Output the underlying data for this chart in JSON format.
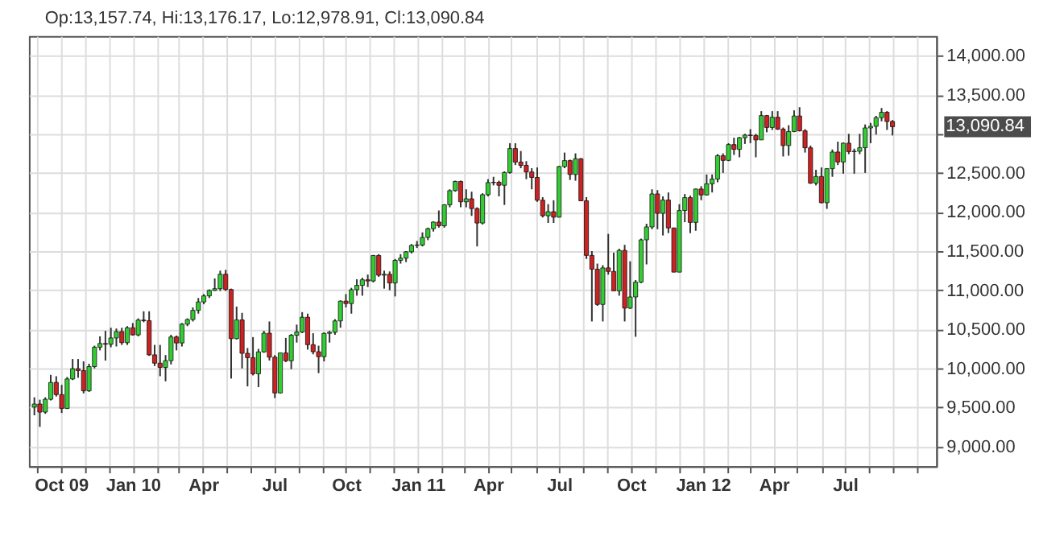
{
  "chart_data": {
    "type": "candlestick",
    "title": "Op:13,157.74, Hi:13,176.17, Lo:12,978.91, Cl:13,090.84",
    "x": [
      "2009-08-28",
      "2009-09-04",
      "2009-09-11",
      "2009-09-18",
      "2009-09-25",
      "2009-10-02",
      "2009-10-09",
      "2009-10-16",
      "2009-10-23",
      "2009-10-30",
      "2009-11-06",
      "2009-11-13",
      "2009-11-20",
      "2009-11-27",
      "2009-12-04",
      "2009-12-11",
      "2009-12-18",
      "2009-12-25",
      "2010-01-01",
      "2010-01-08",
      "2010-01-15",
      "2010-01-22",
      "2010-01-29",
      "2010-02-05",
      "2010-02-12",
      "2010-02-19",
      "2010-02-26",
      "2010-03-05",
      "2010-03-12",
      "2010-03-19",
      "2010-03-26",
      "2010-04-02",
      "2010-04-09",
      "2010-04-16",
      "2010-04-23",
      "2010-04-30",
      "2010-05-07",
      "2010-05-14",
      "2010-05-21",
      "2010-05-28",
      "2010-06-04",
      "2010-06-11",
      "2010-06-18",
      "2010-06-25",
      "2010-07-02",
      "2010-07-09",
      "2010-07-16",
      "2010-07-23",
      "2010-07-30",
      "2010-08-06",
      "2010-08-13",
      "2010-08-20",
      "2010-08-27",
      "2010-09-03",
      "2010-09-10",
      "2010-09-17",
      "2010-09-24",
      "2010-10-01",
      "2010-10-08",
      "2010-10-15",
      "2010-10-22",
      "2010-10-29",
      "2010-11-05",
      "2010-11-12",
      "2010-11-19",
      "2010-11-26",
      "2010-12-03",
      "2010-12-10",
      "2010-12-17",
      "2010-12-24",
      "2010-12-31",
      "2011-01-07",
      "2011-01-14",
      "2011-01-21",
      "2011-01-28",
      "2011-02-04",
      "2011-02-11",
      "2011-02-18",
      "2011-02-25",
      "2011-03-04",
      "2011-03-11",
      "2011-03-18",
      "2011-03-25",
      "2011-04-01",
      "2011-04-08",
      "2011-04-15",
      "2011-04-22",
      "2011-04-29",
      "2011-05-06",
      "2011-05-13",
      "2011-05-20",
      "2011-05-27",
      "2011-06-03",
      "2011-06-10",
      "2011-06-17",
      "2011-06-24",
      "2011-07-01",
      "2011-07-08",
      "2011-07-15",
      "2011-07-22",
      "2011-07-29",
      "2011-08-05",
      "2011-08-12",
      "2011-08-19",
      "2011-08-26",
      "2011-09-02",
      "2011-09-09",
      "2011-09-16",
      "2011-09-23",
      "2011-09-30",
      "2011-10-07",
      "2011-10-14",
      "2011-10-21",
      "2011-10-28",
      "2011-11-04",
      "2011-11-11",
      "2011-11-18",
      "2011-11-25",
      "2011-12-02",
      "2011-12-09",
      "2011-12-16",
      "2011-12-23",
      "2011-12-30",
      "2012-01-06",
      "2012-01-13",
      "2012-01-20",
      "2012-01-27",
      "2012-02-03",
      "2012-02-10",
      "2012-02-17",
      "2012-02-24",
      "2012-03-02",
      "2012-03-09",
      "2012-03-16",
      "2012-03-23",
      "2012-03-30",
      "2012-04-06",
      "2012-04-13",
      "2012-04-20",
      "2012-04-27",
      "2012-05-04",
      "2012-05-11",
      "2012-05-18",
      "2012-05-25",
      "2012-06-01",
      "2012-06-08",
      "2012-06-15",
      "2012-06-22",
      "2012-06-29",
      "2012-07-06",
      "2012-07-13",
      "2012-07-20",
      "2012-07-27",
      "2012-08-03",
      "2012-08-10",
      "2012-08-17",
      "2012-08-24",
      "2012-08-31"
    ],
    "ohlc": [
      [
        9505,
        9630,
        9400,
        9544
      ],
      [
        9544,
        9600,
        9252,
        9441
      ],
      [
        9441,
        9630,
        9420,
        9605
      ],
      [
        9605,
        9917,
        9590,
        9820
      ],
      [
        9820,
        9900,
        9640,
        9665
      ],
      [
        9665,
        9790,
        9430,
        9488
      ],
      [
        9488,
        9890,
        9480,
        9865
      ],
      [
        9865,
        10120,
        9850,
        9996
      ],
      [
        9996,
        10120,
        9880,
        9972
      ],
      [
        9972,
        10090,
        9680,
        9713
      ],
      [
        9713,
        10060,
        9700,
        10023
      ],
      [
        10023,
        10290,
        10000,
        10271
      ],
      [
        10271,
        10410,
        10230,
        10318
      ],
      [
        10318,
        10480,
        10100,
        10309
      ],
      [
        10309,
        10520,
        10270,
        10389
      ],
      [
        10389,
        10510,
        10280,
        10471
      ],
      [
        10471,
        10520,
        10300,
        10329
      ],
      [
        10329,
        10540,
        10300,
        10520
      ],
      [
        10520,
        10580,
        10420,
        10428
      ],
      [
        10428,
        10640,
        10410,
        10618
      ],
      [
        10618,
        10730,
        10590,
        10610
      ],
      [
        10610,
        10730,
        10160,
        10173
      ],
      [
        10173,
        10300,
        10030,
        10067
      ],
      [
        10067,
        10300,
        9900,
        10012
      ],
      [
        10012,
        10170,
        9835,
        10099
      ],
      [
        10099,
        10430,
        10050,
        10402
      ],
      [
        10402,
        10420,
        10230,
        10325
      ],
      [
        10325,
        10580,
        10280,
        10566
      ],
      [
        10566,
        10640,
        10540,
        10625
      ],
      [
        10625,
        10780,
        10600,
        10742
      ],
      [
        10742,
        10900,
        10700,
        10850
      ],
      [
        10850,
        10950,
        10820,
        10927
      ],
      [
        10927,
        11010,
        10900,
        10997
      ],
      [
        10997,
        11150,
        10990,
        11019
      ],
      [
        11019,
        11250,
        10990,
        11204
      ],
      [
        11204,
        11260,
        10990,
        11009
      ],
      [
        11009,
        11020,
        9870,
        10380
      ],
      [
        10380,
        10790,
        10370,
        10620
      ],
      [
        10620,
        10710,
        10000,
        10193
      ],
      [
        10193,
        10260,
        9770,
        10137
      ],
      [
        10137,
        10400,
        9910,
        9931
      ],
      [
        9931,
        10250,
        9760,
        10211
      ],
      [
        10211,
        10480,
        10200,
        10450
      ],
      [
        10450,
        10600,
        10100,
        10143
      ],
      [
        10143,
        10170,
        9620,
        9686
      ],
      [
        9686,
        10200,
        9680,
        10198
      ],
      [
        10198,
        10390,
        10080,
        10097
      ],
      [
        10097,
        10440,
        9990,
        10424
      ],
      [
        10424,
        10560,
        10330,
        10466
      ],
      [
        10466,
        10720,
        10450,
        10654
      ],
      [
        10654,
        10700,
        10240,
        10303
      ],
      [
        10303,
        10450,
        10180,
        10213
      ],
      [
        10213,
        10290,
        9940,
        10150
      ],
      [
        10150,
        10460,
        10090,
        10448
      ],
      [
        10448,
        10480,
        10330,
        10462
      ],
      [
        10462,
        10630,
        10430,
        10607
      ],
      [
        10607,
        10870,
        10520,
        10860
      ],
      [
        10860,
        10950,
        10780,
        10829
      ],
      [
        10829,
        11030,
        10700,
        11006
      ],
      [
        11006,
        11140,
        10930,
        11062
      ],
      [
        11062,
        11160,
        10930,
        11133
      ],
      [
        11133,
        11200,
        11040,
        11118
      ],
      [
        11118,
        11450,
        11100,
        11444
      ],
      [
        11444,
        11460,
        11170,
        11192
      ],
      [
        11192,
        11250,
        11020,
        11204
      ],
      [
        11204,
        11240,
        11000,
        11092
      ],
      [
        11092,
        11400,
        10920,
        11382
      ],
      [
        11382,
        11460,
        11340,
        11410
      ],
      [
        11410,
        11500,
        11360,
        11491
      ],
      [
        11491,
        11590,
        11470,
        11573
      ],
      [
        11573,
        11630,
        11540,
        11578
      ],
      [
        11578,
        11740,
        11560,
        11675
      ],
      [
        11675,
        11800,
        11640,
        11787
      ],
      [
        11787,
        11880,
        11750,
        11871
      ],
      [
        11871,
        12020,
        11800,
        11824
      ],
      [
        11824,
        12100,
        11800,
        12092
      ],
      [
        12092,
        12290,
        12060,
        12273
      ],
      [
        12273,
        12400,
        12260,
        12391
      ],
      [
        12391,
        12400,
        12060,
        12130
      ],
      [
        12130,
        12290,
        12060,
        12169
      ],
      [
        12169,
        12260,
        11950,
        12044
      ],
      [
        12044,
        12060,
        11560,
        11859
      ],
      [
        11859,
        12240,
        11840,
        12221
      ],
      [
        12221,
        12420,
        12200,
        12376
      ],
      [
        12376,
        12450,
        12340,
        12380
      ],
      [
        12380,
        12400,
        12200,
        12342
      ],
      [
        12342,
        12520,
        12090,
        12505
      ],
      [
        12505,
        12880,
        12490,
        12811
      ],
      [
        12811,
        12880,
        12600,
        12639
      ],
      [
        12639,
        12780,
        12560,
        12596
      ],
      [
        12596,
        12650,
        12420,
        12512
      ],
      [
        12512,
        12560,
        12290,
        12442
      ],
      [
        12442,
        12570,
        12130,
        12151
      ],
      [
        12151,
        12190,
        11930,
        11952
      ],
      [
        11952,
        12100,
        11860,
        12004
      ],
      [
        12004,
        12150,
        11860,
        11934
      ],
      [
        11934,
        12590,
        11930,
        12582
      ],
      [
        12582,
        12760,
        12560,
        12657
      ],
      [
        12657,
        12670,
        12410,
        12480
      ],
      [
        12480,
        12750,
        12400,
        12681
      ],
      [
        12681,
        12690,
        12140,
        12143
      ],
      [
        12143,
        12190,
        11400,
        11445
      ],
      [
        11445,
        11500,
        10600,
        11269
      ],
      [
        11269,
        11340,
        10800,
        10818
      ],
      [
        10818,
        11320,
        10600,
        11285
      ],
      [
        11285,
        11720,
        11200,
        11240
      ],
      [
        11240,
        11480,
        10990,
        10992
      ],
      [
        10992,
        11530,
        10930,
        11509
      ],
      [
        11509,
        11580,
        10600,
        10771
      ],
      [
        10771,
        11370,
        10760,
        10913
      ],
      [
        10913,
        11130,
        10404,
        11103
      ],
      [
        11103,
        11660,
        11090,
        11644
      ],
      [
        11644,
        11850,
        11330,
        11809
      ],
      [
        11809,
        12290,
        11780,
        12231
      ],
      [
        12231,
        12280,
        11780,
        11983
      ],
      [
        11983,
        12200,
        11700,
        12153
      ],
      [
        12153,
        12250,
        11730,
        11796
      ],
      [
        11796,
        11800,
        11230,
        11231
      ],
      [
        11231,
        12100,
        11230,
        12019
      ],
      [
        12019,
        12230,
        11870,
        12184
      ],
      [
        12184,
        12210,
        11730,
        11867
      ],
      [
        11867,
        12300,
        11760,
        12294
      ],
      [
        12294,
        12330,
        12150,
        12218
      ],
      [
        12218,
        12480,
        12210,
        12360
      ],
      [
        12360,
        12480,
        12250,
        12422
      ],
      [
        12422,
        12740,
        12380,
        12720
      ],
      [
        12720,
        12750,
        12500,
        12660
      ],
      [
        12660,
        12880,
        12650,
        12862
      ],
      [
        12862,
        12950,
        12730,
        12801
      ],
      [
        12801,
        12960,
        12700,
        12950
      ],
      [
        12950,
        13000,
        12870,
        12983
      ],
      [
        12983,
        13060,
        12880,
        12978
      ],
      [
        12978,
        13000,
        12700,
        12922
      ],
      [
        12922,
        13290,
        12920,
        13233
      ],
      [
        13233,
        13240,
        13020,
        13081
      ],
      [
        13081,
        13290,
        13050,
        13212
      ],
      [
        13212,
        13290,
        13050,
        13060
      ],
      [
        13060,
        13080,
        12710,
        12850
      ],
      [
        12850,
        13110,
        12720,
        13029
      ],
      [
        13029,
        13300,
        13020,
        13228
      ],
      [
        13228,
        13340,
        13030,
        13038
      ],
      [
        13038,
        13060,
        12760,
        12821
      ],
      [
        12821,
        12850,
        12360,
        12369
      ],
      [
        12369,
        12540,
        12340,
        12454
      ],
      [
        12454,
        12570,
        12110,
        12119
      ],
      [
        12119,
        12560,
        12040,
        12554
      ],
      [
        12554,
        12800,
        12450,
        12767
      ],
      [
        12767,
        12900,
        12600,
        12640
      ],
      [
        12640,
        12890,
        12490,
        12880
      ],
      [
        12880,
        13000,
        12740,
        12772
      ],
      [
        12772,
        12810,
        12490,
        12777
      ],
      [
        12777,
        13000,
        12740,
        12822
      ],
      [
        12822,
        13120,
        12500,
        13075
      ],
      [
        13075,
        13140,
        12880,
        13096
      ],
      [
        13096,
        13230,
        12990,
        13207
      ],
      [
        13207,
        13330,
        13160,
        13275
      ],
      [
        13275,
        13290,
        13050,
        13157
      ],
      [
        13157.74,
        13176.17,
        12978.91,
        13090.84
      ]
    ],
    "colors": [
      "#33cc33",
      "#cc2222",
      "#33cc33",
      "#33cc33",
      "#cc2222",
      "#cc2222",
      "#33cc33",
      "#33cc33",
      "#cc2222",
      "#cc2222",
      "#33cc33",
      "#33cc33",
      "#33cc33",
      "#cc2222",
      "#33cc33",
      "#33cc33",
      "#cc2222",
      "#33cc33",
      "#cc2222",
      "#33cc33",
      "#cc2222",
      "#cc2222",
      "#cc2222",
      "#cc2222",
      "#33cc33",
      "#33cc33",
      "#cc2222",
      "#33cc33",
      "#33cc33",
      "#33cc33",
      "#33cc33",
      "#33cc33",
      "#33cc33",
      "#33cc33",
      "#33cc33",
      "#cc2222",
      "#cc2222",
      "#33cc33",
      "#cc2222",
      "#cc2222",
      "#cc2222",
      "#33cc33",
      "#33cc33",
      "#cc2222",
      "#cc2222",
      "#33cc33",
      "#cc2222",
      "#33cc33",
      "#33cc33",
      "#33cc33",
      "#cc2222",
      "#cc2222",
      "#cc2222",
      "#33cc33",
      "#33cc33",
      "#33cc33",
      "#33cc33",
      "#cc2222",
      "#33cc33",
      "#33cc33",
      "#33cc33",
      "#cc2222",
      "#33cc33",
      "#cc2222",
      "#33cc33",
      "#cc2222",
      "#33cc33",
      "#33cc33",
      "#33cc33",
      "#33cc33",
      "#33cc33",
      "#33cc33",
      "#33cc33",
      "#33cc33",
      "#cc2222",
      "#33cc33",
      "#33cc33",
      "#33cc33",
      "#cc2222",
      "#33cc33",
      "#cc2222",
      "#cc2222",
      "#33cc33",
      "#33cc33",
      "#33cc33",
      "#cc2222",
      "#33cc33",
      "#33cc33",
      "#cc2222",
      "#cc2222",
      "#cc2222",
      "#cc2222",
      "#cc2222",
      "#cc2222",
      "#33cc33",
      "#cc2222",
      "#33cc33",
      "#33cc33",
      "#cc2222",
      "#33cc33",
      "#cc2222",
      "#cc2222",
      "#cc2222",
      "#cc2222",
      "#33cc33",
      "#cc2222",
      "#cc2222",
      "#33cc33",
      "#cc2222",
      "#33cc33",
      "#33cc33",
      "#33cc33",
      "#33cc33",
      "#33cc33",
      "#cc2222",
      "#33cc33",
      "#cc2222",
      "#cc2222",
      "#33cc33",
      "#33cc33",
      "#cc2222",
      "#33cc33",
      "#cc2222",
      "#33cc33",
      "#33cc33",
      "#33cc33",
      "#cc2222",
      "#33cc33",
      "#cc2222",
      "#33cc33",
      "#33cc33",
      "#cc2222",
      "#cc2222",
      "#33cc33",
      "#cc2222",
      "#33cc33",
      "#cc2222",
      "#cc2222",
      "#33cc33",
      "#33cc33",
      "#cc2222",
      "#cc2222",
      "#cc2222",
      "#33cc33",
      "#cc2222",
      "#33cc33",
      "#33cc33",
      "#cc2222",
      "#33cc33",
      "#cc2222",
      "#33cc33",
      "#33cc33",
      "#33cc33",
      "#33cc33",
      "#33cc33",
      "#33cc33",
      "#cc2222",
      "#cc2222"
    ],
    "xlim": [
      "2009-08-21",
      "2012-10-26"
    ],
    "xticks": [
      {
        "value": "2009-09-01",
        "label": null
      },
      {
        "value": "2009-10-01",
        "label": "Oct 09"
      },
      {
        "value": "2009-11-01",
        "label": null
      },
      {
        "value": "2009-12-01",
        "label": null
      },
      {
        "value": "2010-01-01",
        "label": "Jan 10"
      },
      {
        "value": "2010-02-01",
        "label": null
      },
      {
        "value": "2010-03-01",
        "label": null
      },
      {
        "value": "2010-04-01",
        "label": "Apr"
      },
      {
        "value": "2010-05-01",
        "label": null
      },
      {
        "value": "2010-06-01",
        "label": null
      },
      {
        "value": "2010-07-01",
        "label": "Jul"
      },
      {
        "value": "2010-08-01",
        "label": null
      },
      {
        "value": "2010-09-01",
        "label": null
      },
      {
        "value": "2010-10-01",
        "label": "Oct"
      },
      {
        "value": "2010-11-01",
        "label": null
      },
      {
        "value": "2010-12-01",
        "label": null
      },
      {
        "value": "2011-01-01",
        "label": "Jan 11"
      },
      {
        "value": "2011-02-01",
        "label": null
      },
      {
        "value": "2011-03-01",
        "label": null
      },
      {
        "value": "2011-04-01",
        "label": "Apr"
      },
      {
        "value": "2011-05-01",
        "label": null
      },
      {
        "value": "2011-06-01",
        "label": null
      },
      {
        "value": "2011-07-01",
        "label": "Jul"
      },
      {
        "value": "2011-08-01",
        "label": null
      },
      {
        "value": "2011-09-01",
        "label": null
      },
      {
        "value": "2011-10-01",
        "label": "Oct"
      },
      {
        "value": "2011-11-01",
        "label": null
      },
      {
        "value": "2011-12-01",
        "label": null
      },
      {
        "value": "2012-01-01",
        "label": "Jan 12"
      },
      {
        "value": "2012-02-01",
        "label": null
      },
      {
        "value": "2012-03-01",
        "label": null
      },
      {
        "value": "2012-04-01",
        "label": "Apr"
      },
      {
        "value": "2012-05-01",
        "label": null
      },
      {
        "value": "2012-06-01",
        "label": null
      },
      {
        "value": "2012-07-01",
        "label": "Jul"
      },
      {
        "value": "2012-08-01",
        "label": null
      },
      {
        "value": "2012-09-01",
        "label": null
      },
      {
        "value": "2012-10-01",
        "label": null
      }
    ],
    "ylim": [
      8750,
      14250
    ],
    "yticks": [
      {
        "value": 9000,
        "label": "9,000.00"
      },
      {
        "value": 9500,
        "label": "9,500.00"
      },
      {
        "value": 10000,
        "label": "10,000.00"
      },
      {
        "value": 10500,
        "label": "10,500.00"
      },
      {
        "value": 11000,
        "label": "11,000.00"
      },
      {
        "value": 11500,
        "label": "11,500.00"
      },
      {
        "value": 12000,
        "label": "12,000.00"
      },
      {
        "value": 12500,
        "label": "12,500.00"
      },
      {
        "value": 13000,
        "label": null
      },
      {
        "value": 13500,
        "label": "13,500.00"
      },
      {
        "value": 14000,
        "label": "14,000.00"
      }
    ],
    "annotations": [
      "13,090.84"
    ],
    "grid": true
  }
}
